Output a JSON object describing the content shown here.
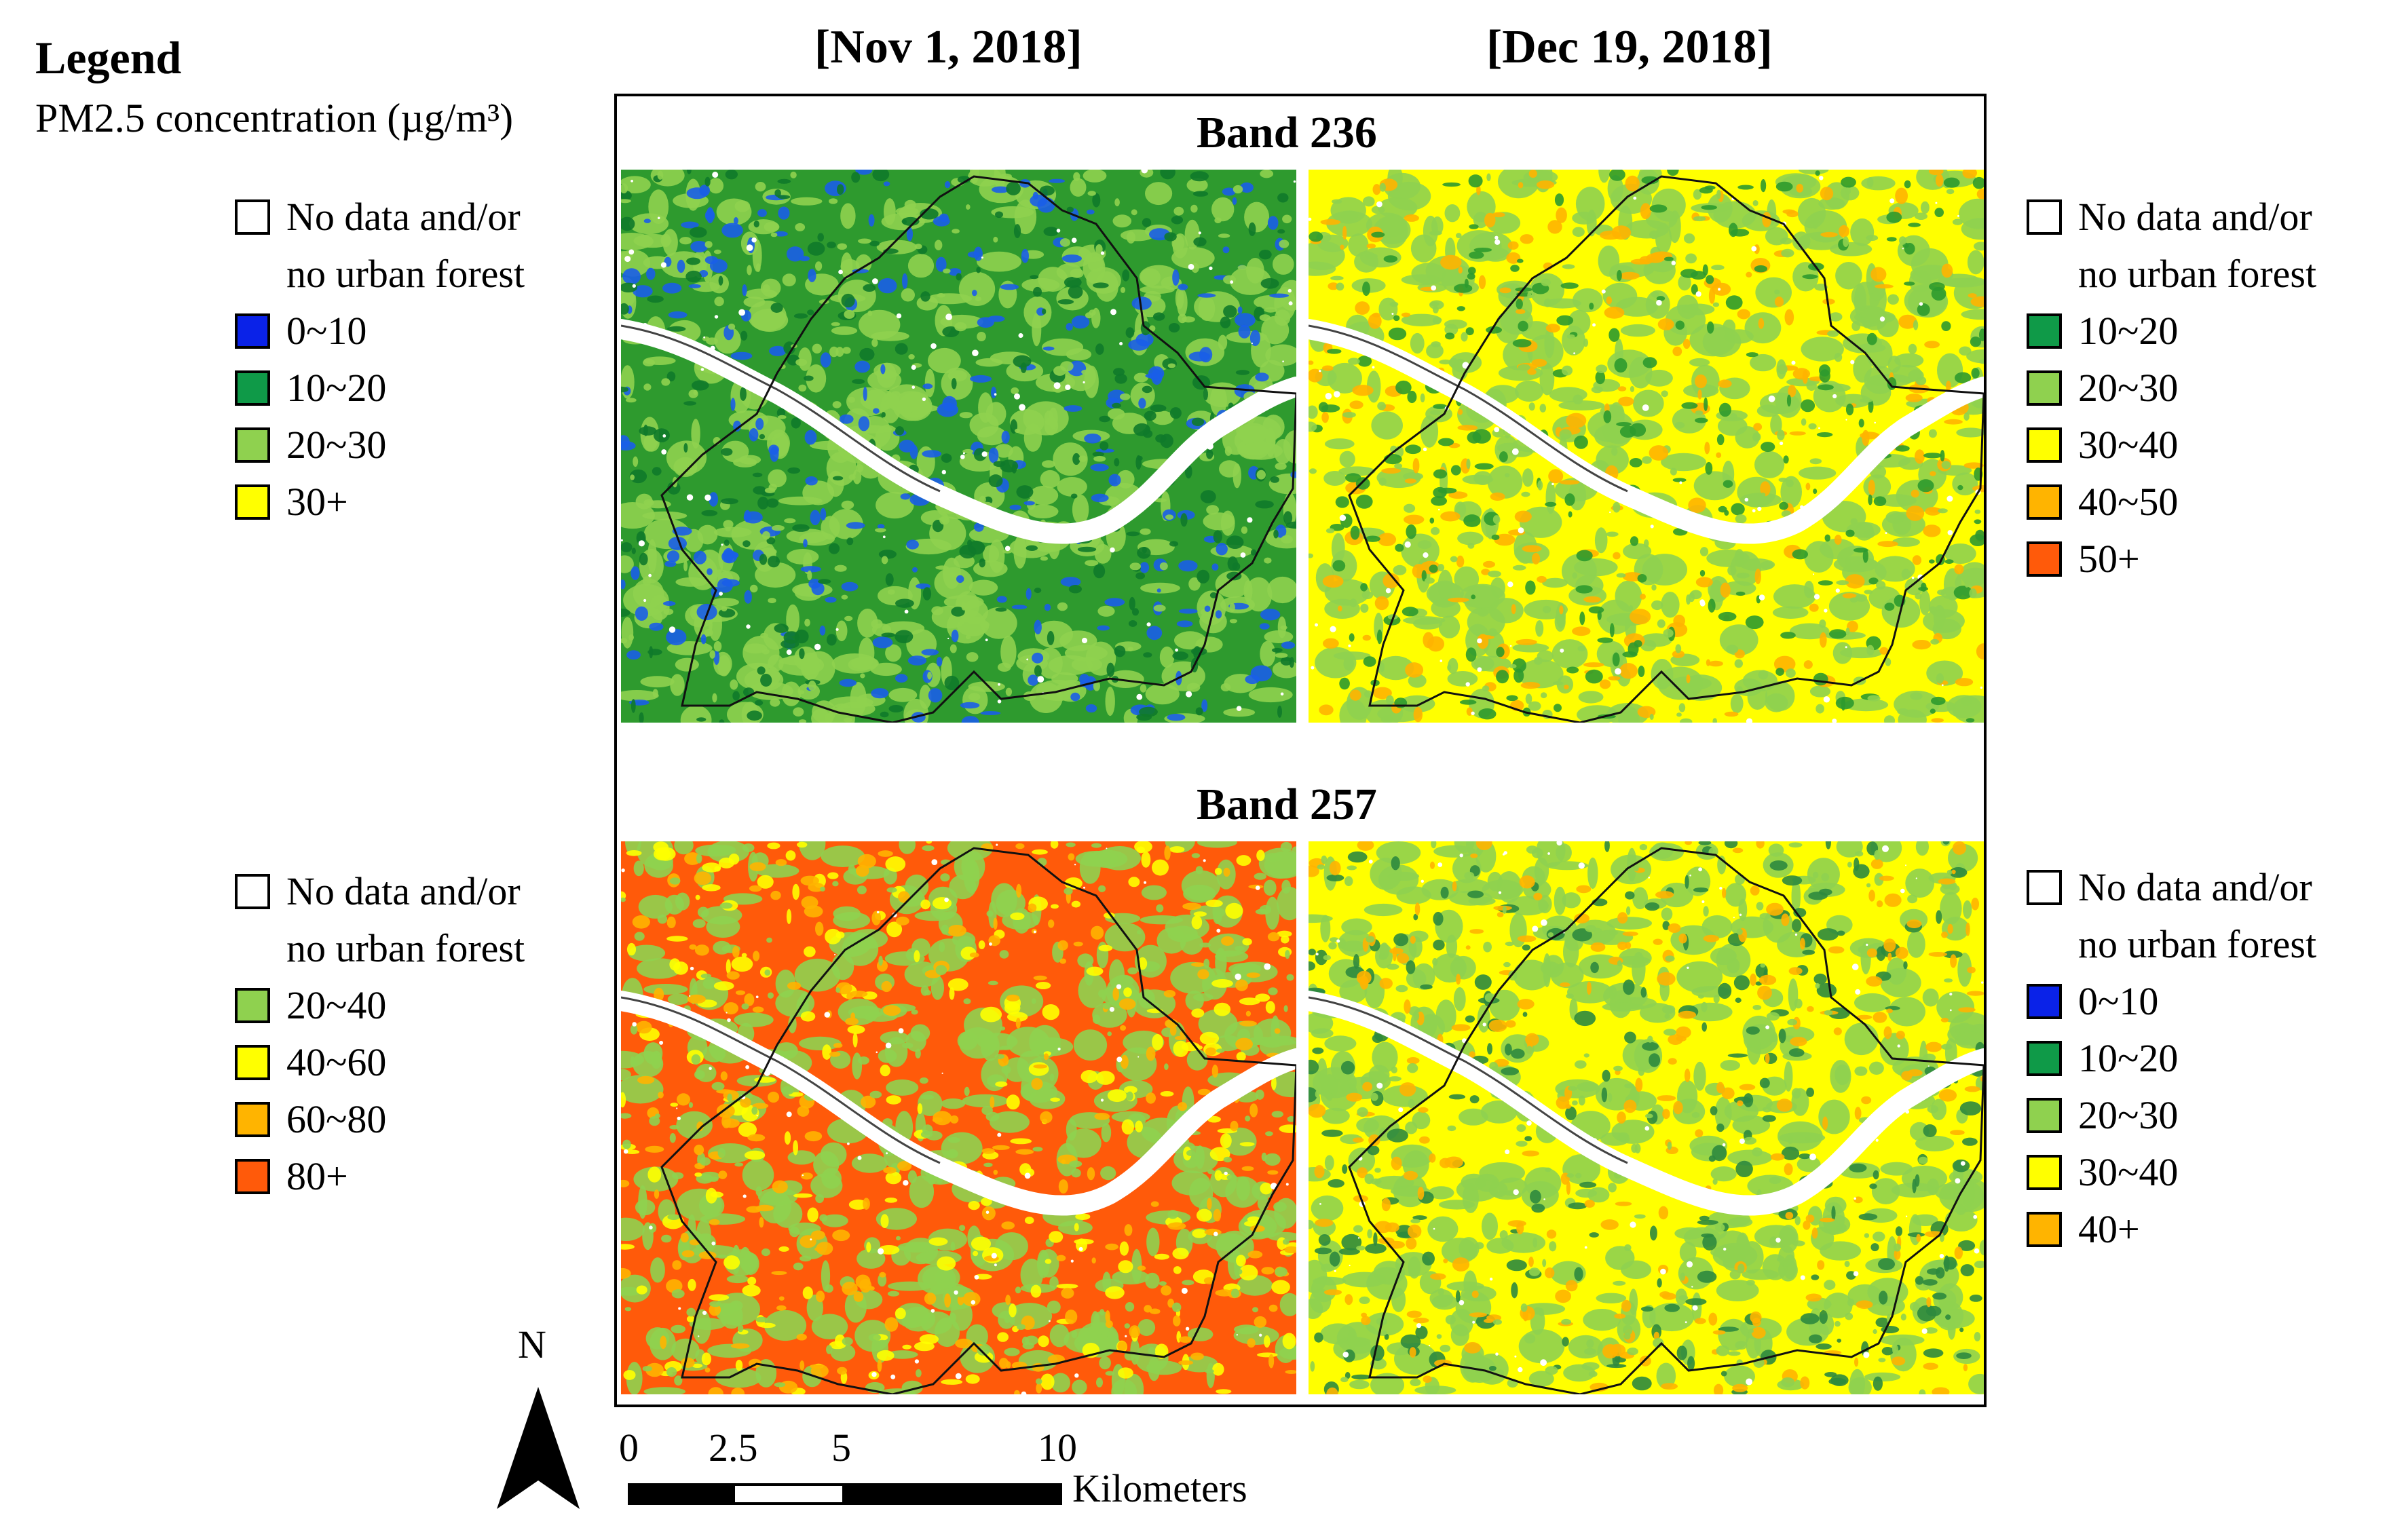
{
  "legend": {
    "title": "Legend",
    "subtitle": "PM2.5 concentration (µg/m³)"
  },
  "dates": {
    "left": "[Nov 1, 2018]",
    "right": "[Dec 19, 2018]"
  },
  "bands": {
    "top": "Band 236",
    "bottom": "Band 257"
  },
  "legends": {
    "top_left": [
      {
        "line1": "No data and/or",
        "line2": "no urban forest",
        "color": "#ffffff"
      },
      {
        "line1": "0~10",
        "color": "#0a22e8"
      },
      {
        "line1": "10~20",
        "color": "#0f9a48"
      },
      {
        "line1": "20~30",
        "color": "#8fd14f"
      },
      {
        "line1": "30+",
        "color": "#ffff00"
      }
    ],
    "top_right": [
      {
        "line1": "No data and/or",
        "line2": "no urban forest",
        "color": "#ffffff"
      },
      {
        "line1": "10~20",
        "color": "#0f9a48"
      },
      {
        "line1": "20~30",
        "color": "#8fd14f"
      },
      {
        "line1": "30~40",
        "color": "#ffff00"
      },
      {
        "line1": "40~50",
        "color": "#ffb400"
      },
      {
        "line1": "50+",
        "color": "#ff5a0a"
      }
    ],
    "bottom_left": [
      {
        "line1": "No data and/or",
        "line2": "no urban forest",
        "color": "#ffffff"
      },
      {
        "line1": "20~40",
        "color": "#8fd14f"
      },
      {
        "line1": "40~60",
        "color": "#ffff00"
      },
      {
        "line1": "60~80",
        "color": "#ffb400"
      },
      {
        "line1": "80+",
        "color": "#ff5a0a"
      }
    ],
    "bottom_right": [
      {
        "line1": "No data and/or",
        "line2": "no urban forest",
        "color": "#ffffff"
      },
      {
        "line1": "0~10",
        "color": "#0a22e8"
      },
      {
        "line1": "10~20",
        "color": "#0f9a48"
      },
      {
        "line1": "20~30",
        "color": "#8fd14f"
      },
      {
        "line1": "30~40",
        "color": "#ffff00"
      },
      {
        "line1": "40+",
        "color": "#ffb400"
      }
    ]
  },
  "maps": {
    "top_left": {
      "base": "#2e9a2e",
      "dominant": "#8fd14f",
      "accent": "#1a5ee8",
      "accent2": "#0f7a2a"
    },
    "top_right": {
      "base": "#ffff00",
      "dominant": "#8fd14f",
      "accent": "#ffb400",
      "accent2": "#2e9a2e"
    },
    "bottom_left": {
      "base": "#ff5a0a",
      "dominant": "#8fd14f",
      "accent": "#ffff00",
      "accent2": "#ffb400"
    },
    "bottom_right": {
      "base": "#ffff00",
      "dominant": "#8fd14f",
      "accent": "#2e8a3e",
      "accent2": "#ffb400"
    }
  },
  "north": "N",
  "scale": {
    "ticks": [
      "0",
      "2.5",
      "5",
      "10"
    ],
    "unit": "Kilometers"
  }
}
